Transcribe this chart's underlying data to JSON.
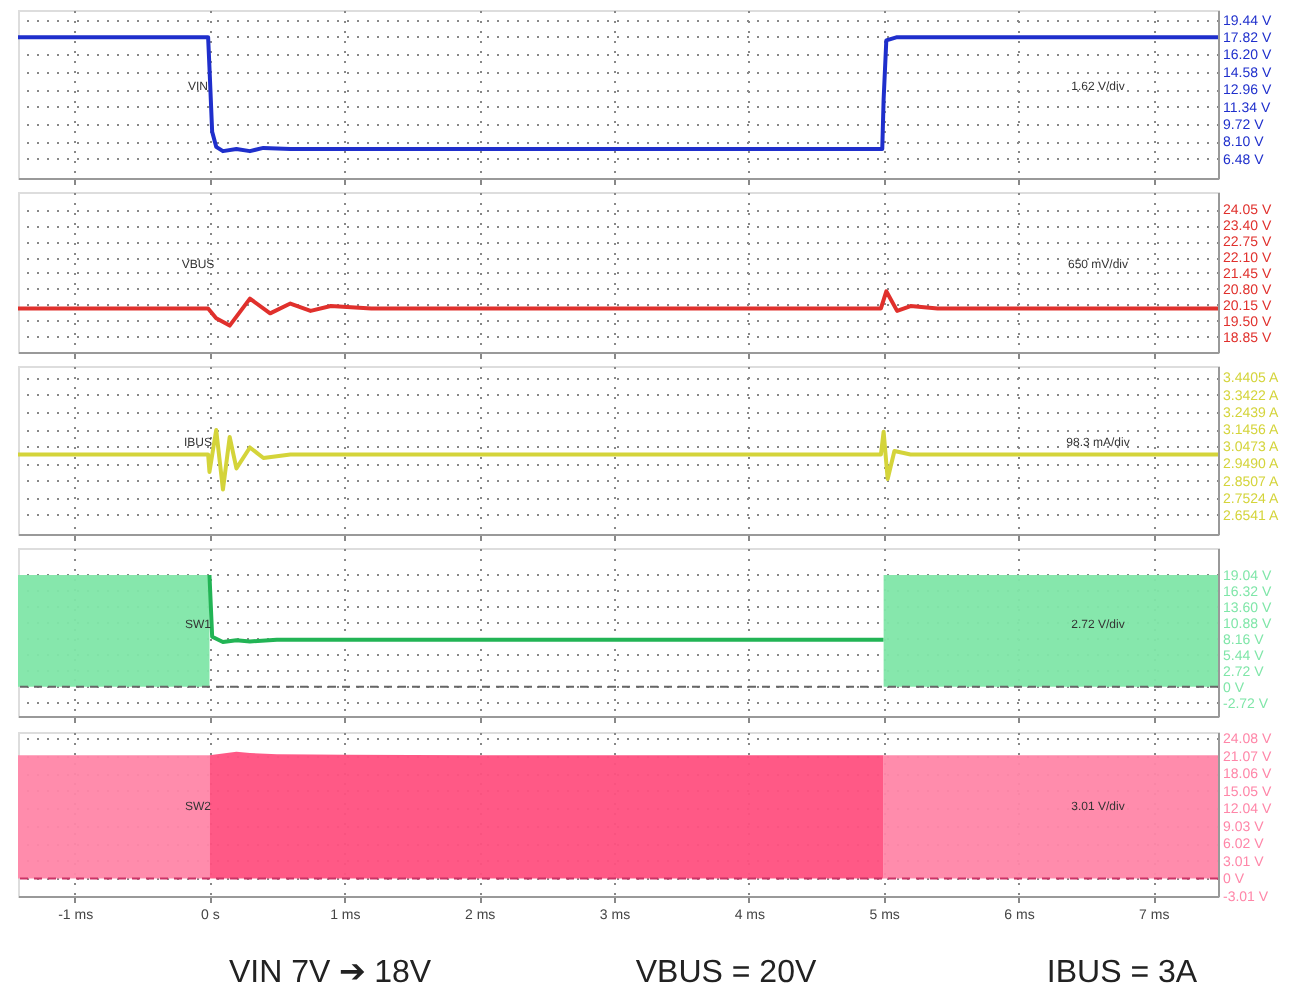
{
  "chart_data": [
    {
      "type": "line",
      "annotations": [
        "VIN",
        "1.62 V/div"
      ],
      "xlim": [
        -1.42,
        7.48
      ],
      "ylim": [
        4.7,
        20.33
      ],
      "grid": true,
      "tick_labels": "y",
      "xticks": [
        {
          "value": -1,
          "label": null
        },
        {
          "value": 0,
          "label": null
        },
        {
          "value": 1,
          "label": null
        },
        {
          "value": 2,
          "label": null
        },
        {
          "value": 3,
          "label": null
        },
        {
          "value": 4,
          "label": null
        },
        {
          "value": 5,
          "label": null
        },
        {
          "value": 6,
          "label": null
        },
        {
          "value": 7,
          "label": null
        }
      ],
      "yticks": [
        {
          "value": 6.48,
          "label": "6.48 V"
        },
        {
          "value": 8.1,
          "label": "8.10 V"
        },
        {
          "value": 9.72,
          "label": "9.72 V"
        },
        {
          "value": 11.34,
          "label": "11.34 V"
        },
        {
          "value": 12.96,
          "label": "12.96 V"
        },
        {
          "value": 14.58,
          "label": "14.58 V"
        },
        {
          "value": 16.2,
          "label": "16.20 V"
        },
        {
          "value": 17.82,
          "label": "17.82 V"
        },
        {
          "value": 19.44,
          "label": "19.44 V"
        }
      ],
      "series": [
        {
          "color": "#1f2fcc",
          "x": [
            -1.42,
            -0.01,
            0.0,
            0.02,
            0.05,
            0.1,
            0.2,
            0.3,
            0.4,
            0.6,
            1.0,
            2.0,
            3.0,
            4.0,
            4.99,
            5.0,
            5.02,
            5.1,
            6.0,
            7.48
          ],
          "values": [
            17.8,
            17.8,
            15,
            9,
            7.6,
            7.2,
            7.4,
            7.2,
            7.5,
            7.4,
            7.4,
            7.4,
            7.4,
            7.4,
            7.4,
            12,
            17.5,
            17.8,
            17.8,
            17.8
          ]
        }
      ]
    },
    {
      "type": "line",
      "annotations": [
        "VBUS",
        "650 mV/div"
      ],
      "xlim": [
        -1.42,
        7.48
      ],
      "ylim": [
        18.22,
        24.76
      ],
      "grid": true,
      "tick_labels": "y",
      "xticks": [
        {
          "value": -1,
          "label": null
        },
        {
          "value": 0,
          "label": null
        },
        {
          "value": 1,
          "label": null
        },
        {
          "value": 2,
          "label": null
        },
        {
          "value": 3,
          "label": null
        },
        {
          "value": 4,
          "label": null
        },
        {
          "value": 5,
          "label": null
        },
        {
          "value": 6,
          "label": null
        },
        {
          "value": 7,
          "label": null
        }
      ],
      "yticks": [
        {
          "value": 18.85,
          "label": "18.85 V"
        },
        {
          "value": 19.5,
          "label": "19.50 V"
        },
        {
          "value": 20.15,
          "label": "20.15 V"
        },
        {
          "value": 20.8,
          "label": "20.80 V"
        },
        {
          "value": 21.45,
          "label": "21.45 V"
        },
        {
          "value": 22.1,
          "label": "22.10 V"
        },
        {
          "value": 22.75,
          "label": "22.75 V"
        },
        {
          "value": 23.4,
          "label": "23.40 V"
        },
        {
          "value": 24.05,
          "label": "24.05 V"
        }
      ],
      "series": [
        {
          "color": "#e0302c",
          "x": [
            -1.42,
            -0.01,
            0.05,
            0.15,
            0.3,
            0.45,
            0.6,
            0.75,
            0.9,
            1.2,
            2,
            3,
            4,
            4.98,
            5.02,
            5.1,
            5.2,
            5.4,
            6,
            7.48
          ],
          "values": [
            20.0,
            20.0,
            19.6,
            19.3,
            20.4,
            19.8,
            20.2,
            19.9,
            20.1,
            20.0,
            20.0,
            20.0,
            20.0,
            20.0,
            20.7,
            19.9,
            20.1,
            20.0,
            20.0,
            20.0
          ]
        }
      ]
    },
    {
      "type": "line",
      "annotations": [
        "IBUS",
        "98.3 mA/div"
      ],
      "xlim": [
        -1.42,
        7.48
      ],
      "ylim": [
        2.545,
        3.506
      ],
      "grid": true,
      "tick_labels": "y",
      "xticks": [
        {
          "value": -1,
          "label": null
        },
        {
          "value": 0,
          "label": null
        },
        {
          "value": 1,
          "label": null
        },
        {
          "value": 2,
          "label": null
        },
        {
          "value": 3,
          "label": null
        },
        {
          "value": 4,
          "label": null
        },
        {
          "value": 5,
          "label": null
        },
        {
          "value": 6,
          "label": null
        },
        {
          "value": 7,
          "label": null
        }
      ],
      "yticks": [
        {
          "value": 2.6541,
          "label": "2.6541 A"
        },
        {
          "value": 2.7524,
          "label": "2.7524 A"
        },
        {
          "value": 2.8507,
          "label": "2.8507 A"
        },
        {
          "value": 2.949,
          "label": "2.9490 A"
        },
        {
          "value": 3.0473,
          "label": "3.0473 A"
        },
        {
          "value": 3.1456,
          "label": "3.1456 A"
        },
        {
          "value": 3.2439,
          "label": "3.2439 A"
        },
        {
          "value": 3.3422,
          "label": "3.3422 A"
        },
        {
          "value": 3.4405,
          "label": "3.4405 A"
        }
      ],
      "series": [
        {
          "color": "#d4d43a",
          "x": [
            -1.42,
            -0.01,
            0.0,
            0.05,
            0.1,
            0.15,
            0.2,
            0.3,
            0.4,
            0.6,
            1,
            2,
            3,
            4,
            4.98,
            5.0,
            5.03,
            5.08,
            5.2,
            6,
            7.48
          ],
          "values": [
            3.0,
            3.0,
            2.9,
            3.14,
            2.8,
            3.1,
            2.92,
            3.04,
            2.98,
            3.0,
            3.0,
            3.0,
            3.0,
            3.0,
            3.0,
            3.13,
            2.86,
            3.02,
            3.0,
            3.0,
            3.0
          ]
        }
      ]
    },
    {
      "type": "line",
      "annotations": [
        "SW1",
        "2.72 V/div"
      ],
      "xlim": [
        -1.42,
        7.48
      ],
      "ylim": [
        -4.99,
        23.59
      ],
      "grid": true,
      "tick_labels": "y",
      "xticks": [
        {
          "value": -1,
          "label": null
        },
        {
          "value": 0,
          "label": null
        },
        {
          "value": 1,
          "label": null
        },
        {
          "value": 2,
          "label": null
        },
        {
          "value": 3,
          "label": null
        },
        {
          "value": 4,
          "label": null
        },
        {
          "value": 5,
          "label": null
        },
        {
          "value": 6,
          "label": null
        },
        {
          "value": 7,
          "label": null
        }
      ],
      "yticks": [
        {
          "value": -2.72,
          "label": "-2.72 V"
        },
        {
          "value": 0,
          "label": "0 V"
        },
        {
          "value": 2.72,
          "label": "2.72 V"
        },
        {
          "value": 5.44,
          "label": "5.44 V"
        },
        {
          "value": 8.16,
          "label": "8.16 V"
        },
        {
          "value": 10.88,
          "label": "10.88 V"
        },
        {
          "value": 13.6,
          "label": "13.60 V"
        },
        {
          "value": 16.32,
          "label": "16.32 V"
        },
        {
          "value": 19.04,
          "label": "19.04 V"
        }
      ],
      "ref_lines": [
        {
          "axis": "y",
          "value": 0,
          "color": "#666666",
          "line_style": "dashed"
        }
      ],
      "series": [
        {
          "type": "area",
          "color": "#7fe6a8",
          "x": [
            -1.42,
            0
          ],
          "values": [
            19.0,
            19.0
          ]
        },
        {
          "color": "#22b455",
          "x": [
            0,
            0.02,
            0.1,
            0.2,
            0.3,
            0.5,
            1,
            2,
            3,
            4,
            5
          ],
          "values": [
            19,
            8.5,
            7.6,
            7.9,
            7.7,
            8,
            8,
            8,
            8,
            8,
            8
          ]
        },
        {
          "type": "area",
          "color": "#7fe6a8",
          "x": [
            5,
            7.48
          ],
          "values": [
            19.0,
            19.0
          ]
        }
      ]
    },
    {
      "type": "line",
      "annotations": [
        "SW2",
        "3.01 V/div",
        "VIN 7V ➔ 18V",
        "VBUS = 20V",
        "IBUS = 3A"
      ],
      "xlim": [
        -1.42,
        7.48
      ],
      "ylim": [
        -3.01,
        25.1
      ],
      "grid": true,
      "xticks": [
        {
          "value": -1,
          "label": "-1 ms"
        },
        {
          "value": 0,
          "label": "0 s"
        },
        {
          "value": 1,
          "label": "1 ms"
        },
        {
          "value": 2,
          "label": "2 ms"
        },
        {
          "value": 3,
          "label": "3 ms"
        },
        {
          "value": 4,
          "label": "4 ms"
        },
        {
          "value": 5,
          "label": "5 ms"
        },
        {
          "value": 6,
          "label": "6 ms"
        },
        {
          "value": 7,
          "label": "7 ms"
        }
      ],
      "yticks": [
        {
          "value": -3.01,
          "label": "-3.01 V"
        },
        {
          "value": 0,
          "label": "0 V"
        },
        {
          "value": 3.01,
          "label": "3.01 V"
        },
        {
          "value": 6.02,
          "label": "6.02 V"
        },
        {
          "value": 9.03,
          "label": "9.03 V"
        },
        {
          "value": 12.04,
          "label": "12.04 V"
        },
        {
          "value": 15.05,
          "label": "15.05 V"
        },
        {
          "value": 18.06,
          "label": "18.06 V"
        },
        {
          "value": 21.07,
          "label": "21.07 V"
        },
        {
          "value": 24.08,
          "label": "24.08 V"
        }
      ],
      "ref_lines": [
        {
          "axis": "y",
          "value": 0,
          "color": "#cc3366",
          "line_style": "dashed"
        }
      ],
      "series": [
        {
          "type": "area",
          "color": "#ff86a8",
          "x": [
            -1.42,
            0
          ],
          "values": [
            21.1,
            21.1
          ]
        },
        {
          "type": "area",
          "color": "#ff5080",
          "x": [
            0,
            0.1,
            0.2,
            0.3,
            0.5,
            1,
            2,
            3,
            4,
            5
          ],
          "values": [
            21.1,
            21.4,
            21.7,
            21.5,
            21.3,
            21.2,
            21.1,
            21.1,
            21.1,
            21.1
          ]
        },
        {
          "type": "area",
          "color": "#ff86a8",
          "x": [
            5,
            7.48
          ],
          "values": [
            21.1,
            21.1
          ]
        }
      ]
    }
  ]
}
